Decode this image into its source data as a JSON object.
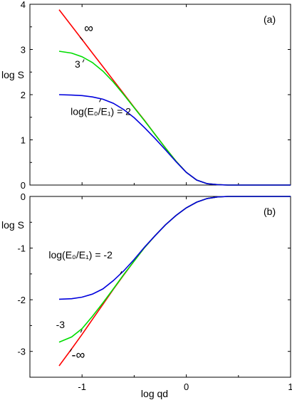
{
  "chart_data": [
    {
      "type": "line",
      "panel_label": "(a)",
      "xlabel": "",
      "ylabel": "log S",
      "xlim": [
        -1.5,
        1
      ],
      "ylim": [
        0,
        4
      ],
      "xticks": [
        -1,
        0,
        1
      ],
      "xtick_labels": [
        "",
        "",
        ""
      ],
      "yticks": [
        0,
        1,
        2,
        3,
        4
      ],
      "ytick_labels": [
        "0",
        "1",
        "2",
        "3",
        "4"
      ],
      "grid": false,
      "series": [
        {
          "color": "#ff0000",
          "x": [
            -1.22,
            -1.1,
            -1.0,
            -0.9,
            -0.8,
            -0.7,
            -0.6,
            -0.5,
            -0.4,
            -0.3,
            -0.2,
            -0.1,
            0.0,
            0.1,
            0.2,
            0.3,
            0.4,
            0.5,
            0.6,
            0.7,
            0.8,
            0.9,
            1.0
          ],
          "y": [
            3.88,
            3.52,
            3.22,
            2.92,
            2.62,
            2.32,
            2.02,
            1.72,
            1.43,
            1.12,
            0.82,
            0.53,
            0.28,
            0.11,
            0.03,
            0.01,
            0.0,
            0.0,
            0.0,
            0.0,
            0.0,
            0.0,
            0.0
          ]
        },
        {
          "color": "#00dd00",
          "x": [
            -1.22,
            -1.1,
            -1.0,
            -0.9,
            -0.8,
            -0.7,
            -0.6,
            -0.5,
            -0.4,
            -0.3,
            -0.2,
            -0.1,
            0.0,
            0.1,
            0.2,
            0.3,
            0.4,
            0.5,
            0.6,
            0.7,
            0.8,
            0.9,
            1.0
          ],
          "y": [
            2.96,
            2.92,
            2.84,
            2.71,
            2.52,
            2.28,
            2.0,
            1.71,
            1.42,
            1.12,
            0.82,
            0.53,
            0.28,
            0.11,
            0.03,
            0.01,
            0.0,
            0.0,
            0.0,
            0.0,
            0.0,
            0.0,
            0.0
          ]
        },
        {
          "color": "#0000dd",
          "x": [
            -1.22,
            -1.1,
            -1.0,
            -0.9,
            -0.8,
            -0.7,
            -0.6,
            -0.5,
            -0.4,
            -0.3,
            -0.2,
            -0.1,
            0.0,
            0.1,
            0.2,
            0.3,
            0.4,
            0.5,
            0.6,
            0.7,
            0.8,
            0.9,
            1.0
          ],
          "y": [
            2.0,
            1.99,
            1.98,
            1.95,
            1.9,
            1.81,
            1.67,
            1.49,
            1.27,
            1.03,
            0.78,
            0.52,
            0.28,
            0.11,
            0.03,
            0.01,
            0.0,
            0.0,
            0.0,
            0.0,
            0.0,
            0.0,
            0.0
          ]
        }
      ],
      "annotations": [
        {
          "text": "∞",
          "x": -0.98,
          "y": 3.38,
          "leader_to": [
            -1.02,
            3.27
          ]
        },
        {
          "text": "3",
          "x": -1.07,
          "y": 2.6,
          "leader_to": [
            -0.98,
            2.78
          ]
        },
        {
          "text": "log(E₀/E₁) = 2",
          "x": -1.11,
          "y": 1.55,
          "leader_to": [
            -0.82,
            1.9
          ]
        }
      ]
    },
    {
      "type": "line",
      "panel_label": "(b)",
      "xlabel": "log qd",
      "ylabel": "log S",
      "xlim": [
        -1.5,
        1
      ],
      "ylim": [
        -3.5,
        0
      ],
      "xticks": [
        -1,
        0,
        1
      ],
      "xtick_labels": [
        "-1",
        "0",
        "1"
      ],
      "yticks": [
        0,
        -1,
        -2,
        -3
      ],
      "ytick_labels": [
        "0",
        "-1",
        "-2",
        "-3"
      ],
      "grid": false,
      "series": [
        {
          "color": "#ff0000",
          "x": [
            -1.22,
            -1.1,
            -1.0,
            -0.9,
            -0.8,
            -0.7,
            -0.6,
            -0.5,
            -0.4,
            -0.3,
            -0.2,
            -0.1,
            0.0,
            0.1,
            0.2,
            0.3,
            0.4,
            0.5,
            0.6,
            0.7,
            0.8,
            0.9,
            1.0
          ],
          "y": [
            -3.28,
            -2.95,
            -2.67,
            -2.38,
            -2.09,
            -1.8,
            -1.52,
            -1.25,
            -0.99,
            -0.76,
            -0.55,
            -0.37,
            -0.22,
            -0.11,
            -0.04,
            -0.01,
            0.0,
            0.0,
            0.0,
            0.0,
            0.0,
            0.0,
            0.0
          ]
        },
        {
          "color": "#00dd00",
          "x": [
            -1.22,
            -1.1,
            -1.0,
            -0.9,
            -0.8,
            -0.7,
            -0.6,
            -0.5,
            -0.4,
            -0.3,
            -0.2,
            -0.1,
            0.0,
            0.1,
            0.2,
            0.3,
            0.4,
            0.5,
            0.6,
            0.7,
            0.8,
            0.9,
            1.0
          ],
          "y": [
            -2.82,
            -2.72,
            -2.56,
            -2.32,
            -2.06,
            -1.79,
            -1.51,
            -1.25,
            -0.99,
            -0.76,
            -0.55,
            -0.37,
            -0.22,
            -0.11,
            -0.04,
            -0.01,
            0.0,
            0.0,
            0.0,
            0.0,
            0.0,
            0.0,
            0.0
          ]
        },
        {
          "color": "#0000dd",
          "x": [
            -1.22,
            -1.1,
            -1.0,
            -0.9,
            -0.8,
            -0.7,
            -0.6,
            -0.5,
            -0.4,
            -0.3,
            -0.2,
            -0.1,
            0.0,
            0.1,
            0.2,
            0.3,
            0.4,
            0.5,
            0.6,
            0.7,
            0.8,
            0.9,
            1.0
          ],
          "y": [
            -1.99,
            -1.98,
            -1.95,
            -1.89,
            -1.79,
            -1.63,
            -1.44,
            -1.22,
            -0.98,
            -0.76,
            -0.55,
            -0.37,
            -0.22,
            -0.11,
            -0.04,
            -0.01,
            0.0,
            0.0,
            0.0,
            0.0,
            0.0,
            0.0,
            0.0
          ]
        }
      ],
      "annotations": [
        {
          "text": "log(E₀/E₁) = -2",
          "x": -1.32,
          "y": -1.2,
          "leader_to": [
            -0.62,
            -1.45
          ]
        },
        {
          "text": "-3",
          "x": -1.25,
          "y": -2.55,
          "leader_to": [
            -1.0,
            -2.58
          ]
        },
        {
          "text": "-∞",
          "x": -1.1,
          "y": -3.15,
          "leader_to": [
            -1.1,
            -2.95
          ]
        }
      ]
    }
  ]
}
